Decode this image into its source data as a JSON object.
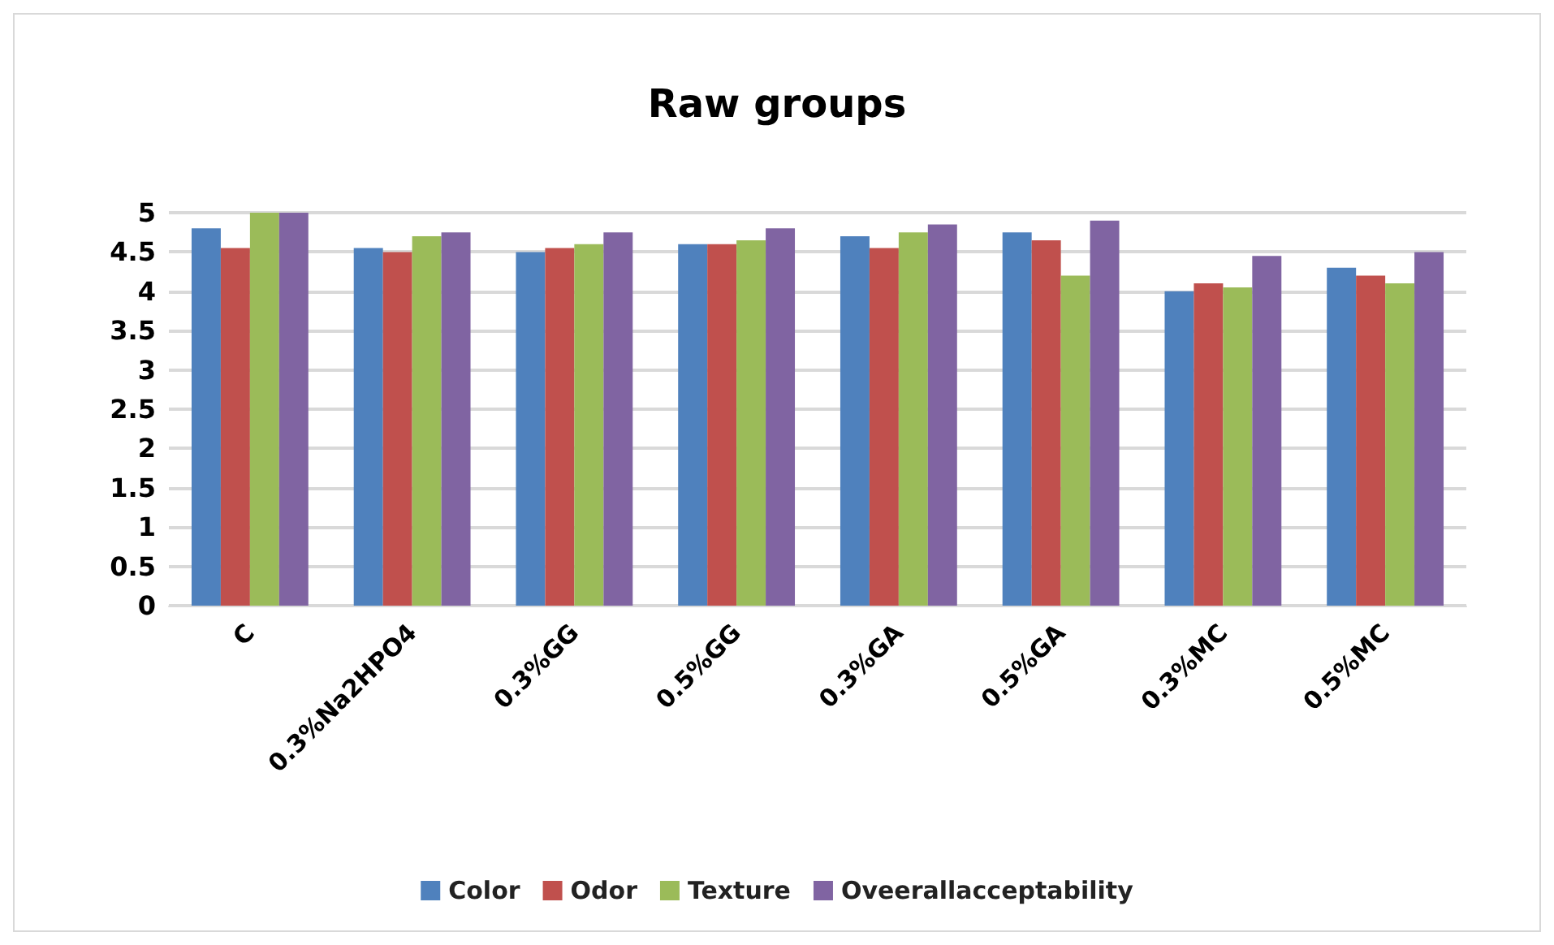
{
  "chart_data": {
    "type": "bar",
    "title": "Raw groups",
    "categories": [
      "C",
      "0.3%Na2HPO4",
      "0.3%GG",
      "0.5%GG",
      "0.3%GA",
      "0.5%GA",
      "0.3%MC",
      "0.5%MC"
    ],
    "series": [
      {
        "name": "Color",
        "color": "#4f81bd",
        "values": [
          4.8,
          4.55,
          4.5,
          4.6,
          4.7,
          4.75,
          4.0,
          4.3
        ]
      },
      {
        "name": "Odor",
        "color": "#c0504d",
        "values": [
          4.55,
          4.5,
          4.55,
          4.6,
          4.55,
          4.65,
          4.1,
          4.2
        ]
      },
      {
        "name": "Texture",
        "color": "#9bbb59",
        "values": [
          5,
          4.7,
          4.6,
          4.65,
          4.75,
          4.2,
          4.05,
          4.1
        ]
      },
      {
        "name": "Oveerallacceptability",
        "color": "#8064a2",
        "values": [
          5,
          4.75,
          4.75,
          4.8,
          4.85,
          4.9,
          4.45,
          4.5
        ]
      }
    ],
    "ylim": [
      0,
      5
    ],
    "yticks": [
      0,
      0.5,
      1,
      1.5,
      2,
      2.5,
      3,
      3.5,
      4,
      4.5,
      5
    ],
    "grid": "y",
    "legend": "bottom"
  }
}
